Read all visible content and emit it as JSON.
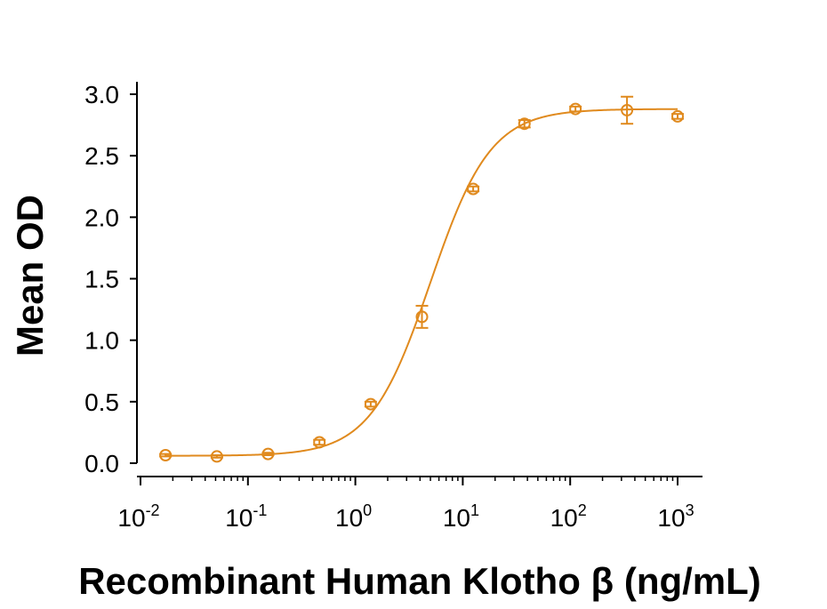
{
  "chart_data": {
    "type": "scatter",
    "title": "",
    "xlabel": "Recombinant Human Klotho β (ng/mL)",
    "ylabel": "Mean OD",
    "xscale": "log",
    "xlim": [
      0.01,
      1000
    ],
    "ylim": [
      0,
      3.0
    ],
    "grid": false,
    "color": "#E08A1E",
    "x_ticks": [
      {
        "base": "10",
        "exp": "-2",
        "value": 0.01
      },
      {
        "base": "10",
        "exp": "-1",
        "value": 0.1
      },
      {
        "base": "10",
        "exp": "0",
        "value": 1
      },
      {
        "base": "10",
        "exp": "1",
        "value": 10
      },
      {
        "base": "10",
        "exp": "2",
        "value": 100
      },
      {
        "base": "10",
        "exp": "3",
        "value": 1000
      }
    ],
    "y_ticks": [
      "0.0",
      "0.5",
      "1.0",
      "1.5",
      "2.0",
      "2.5",
      "3.0"
    ],
    "series": [
      {
        "x": [
          0.0171,
          0.0514,
          0.154,
          0.463,
          1.39,
          4.17,
          12.5,
          37.5,
          112,
          338,
          1000
        ],
        "y": [
          0.065,
          0.055,
          0.075,
          0.17,
          0.48,
          1.19,
          2.23,
          2.76,
          2.88,
          2.87,
          2.82
        ],
        "error": [
          0.01,
          0.01,
          0.01,
          0.02,
          0.02,
          0.09,
          0.02,
          0.03,
          0.02,
          0.11,
          0.02
        ]
      }
    ],
    "fit_curve": {
      "model": "4PL",
      "bottom": 0.06,
      "top": 2.88,
      "ec50": 5.0,
      "hill": 1.55
    }
  }
}
